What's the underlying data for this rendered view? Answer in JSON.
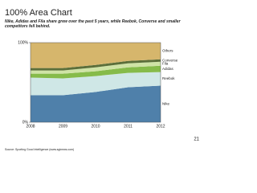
{
  "chart_data": {
    "type": "area",
    "title": "100% Area Chart",
    "subtitle": "Nike, Adidas and Fila share grew over the past 5 years, while Reebok, Converse and smaller competitors fell behind.",
    "source": "Source: Sporting Good Intelligence (www.sginews.com)",
    "page_number": "21",
    "stacked": true,
    "categories": [
      "2008",
      "2009",
      "2010",
      "2011",
      "2012"
    ],
    "ylim": [
      0,
      100
    ],
    "yticks": [
      {
        "value": 0,
        "label": "0%"
      },
      {
        "value": 100,
        "label": "100%"
      }
    ],
    "series": [
      {
        "name": "Nike",
        "color": "#4f80aa",
        "values": [
          34,
          34,
          38,
          44,
          46
        ]
      },
      {
        "name": "Reebok",
        "color": "#cfe7e6",
        "values": [
          22,
          21,
          20,
          18,
          17
        ]
      },
      {
        "name": "Adidas",
        "color": "#86bb4a",
        "values": [
          5,
          6,
          6,
          7,
          8
        ]
      },
      {
        "name": "Fila",
        "color": "#cfe3a6",
        "values": [
          4,
          4,
          5,
          5,
          5
        ]
      },
      {
        "name": "Converse",
        "color": "#5c6f3a",
        "values": [
          3,
          3,
          3,
          3,
          3
        ]
      },
      {
        "name": "Others",
        "color": "#d6b66c",
        "values": [
          32,
          32,
          28,
          23,
          21
        ]
      }
    ]
  }
}
